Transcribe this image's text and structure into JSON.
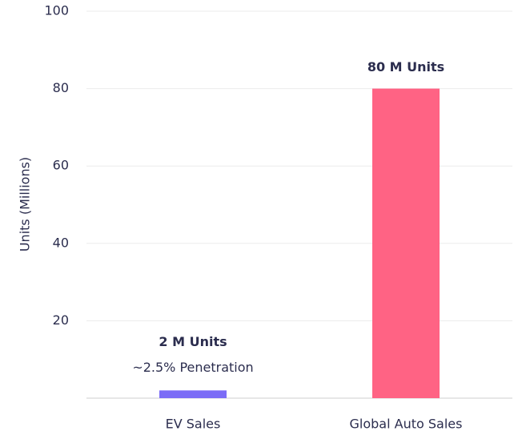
{
  "chart_data": {
    "type": "bar",
    "y_axis_label": "Units (Millions)",
    "categories": [
      "EV Sales",
      "Global Auto Sales"
    ],
    "values": [
      2,
      80
    ],
    "value_labels": [
      "2 M Units",
      "80 M Units"
    ],
    "colors": [
      "#7b6cf6",
      "#ff6384"
    ],
    "annotation": "~2.5% Penetration",
    "ylim": [
      0,
      100
    ],
    "yticks": [
      20,
      40,
      60,
      80,
      100
    ],
    "grid": true
  }
}
